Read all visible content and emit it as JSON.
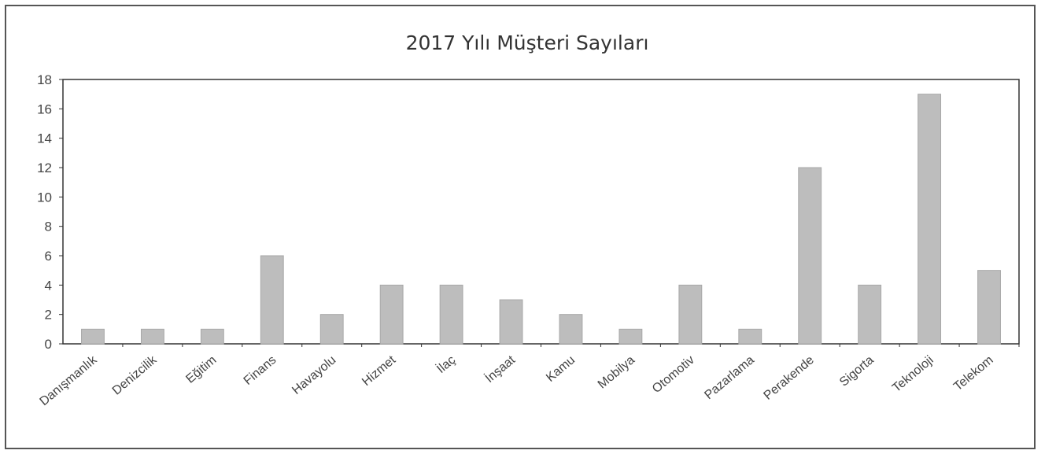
{
  "chart_data": {
    "type": "bar",
    "title": "2017 Yılı Müşteri Sayıları",
    "xlabel": "",
    "ylabel": "",
    "categories": [
      "Danışmanlık",
      "Denizcilik",
      "Eğitim",
      "Finans",
      "Havayolu",
      "Hizmet",
      "İlaç",
      "İnşaat",
      "Kamu",
      "Mobilya",
      "Otomotiv",
      "Pazarlama",
      "Perakende",
      "Sigorta",
      "Teknoloji",
      "Telekom"
    ],
    "values": [
      1,
      1,
      1,
      6,
      2,
      4,
      4,
      3,
      2,
      1,
      4,
      1,
      12,
      4,
      17,
      5
    ],
    "ylim": [
      0,
      18
    ],
    "yticks": [
      0,
      2,
      4,
      6,
      8,
      10,
      12,
      14,
      16,
      18
    ],
    "grid": false,
    "legend": "none",
    "bar_color": "#bdbdbd",
    "axis_color": "#333333"
  }
}
